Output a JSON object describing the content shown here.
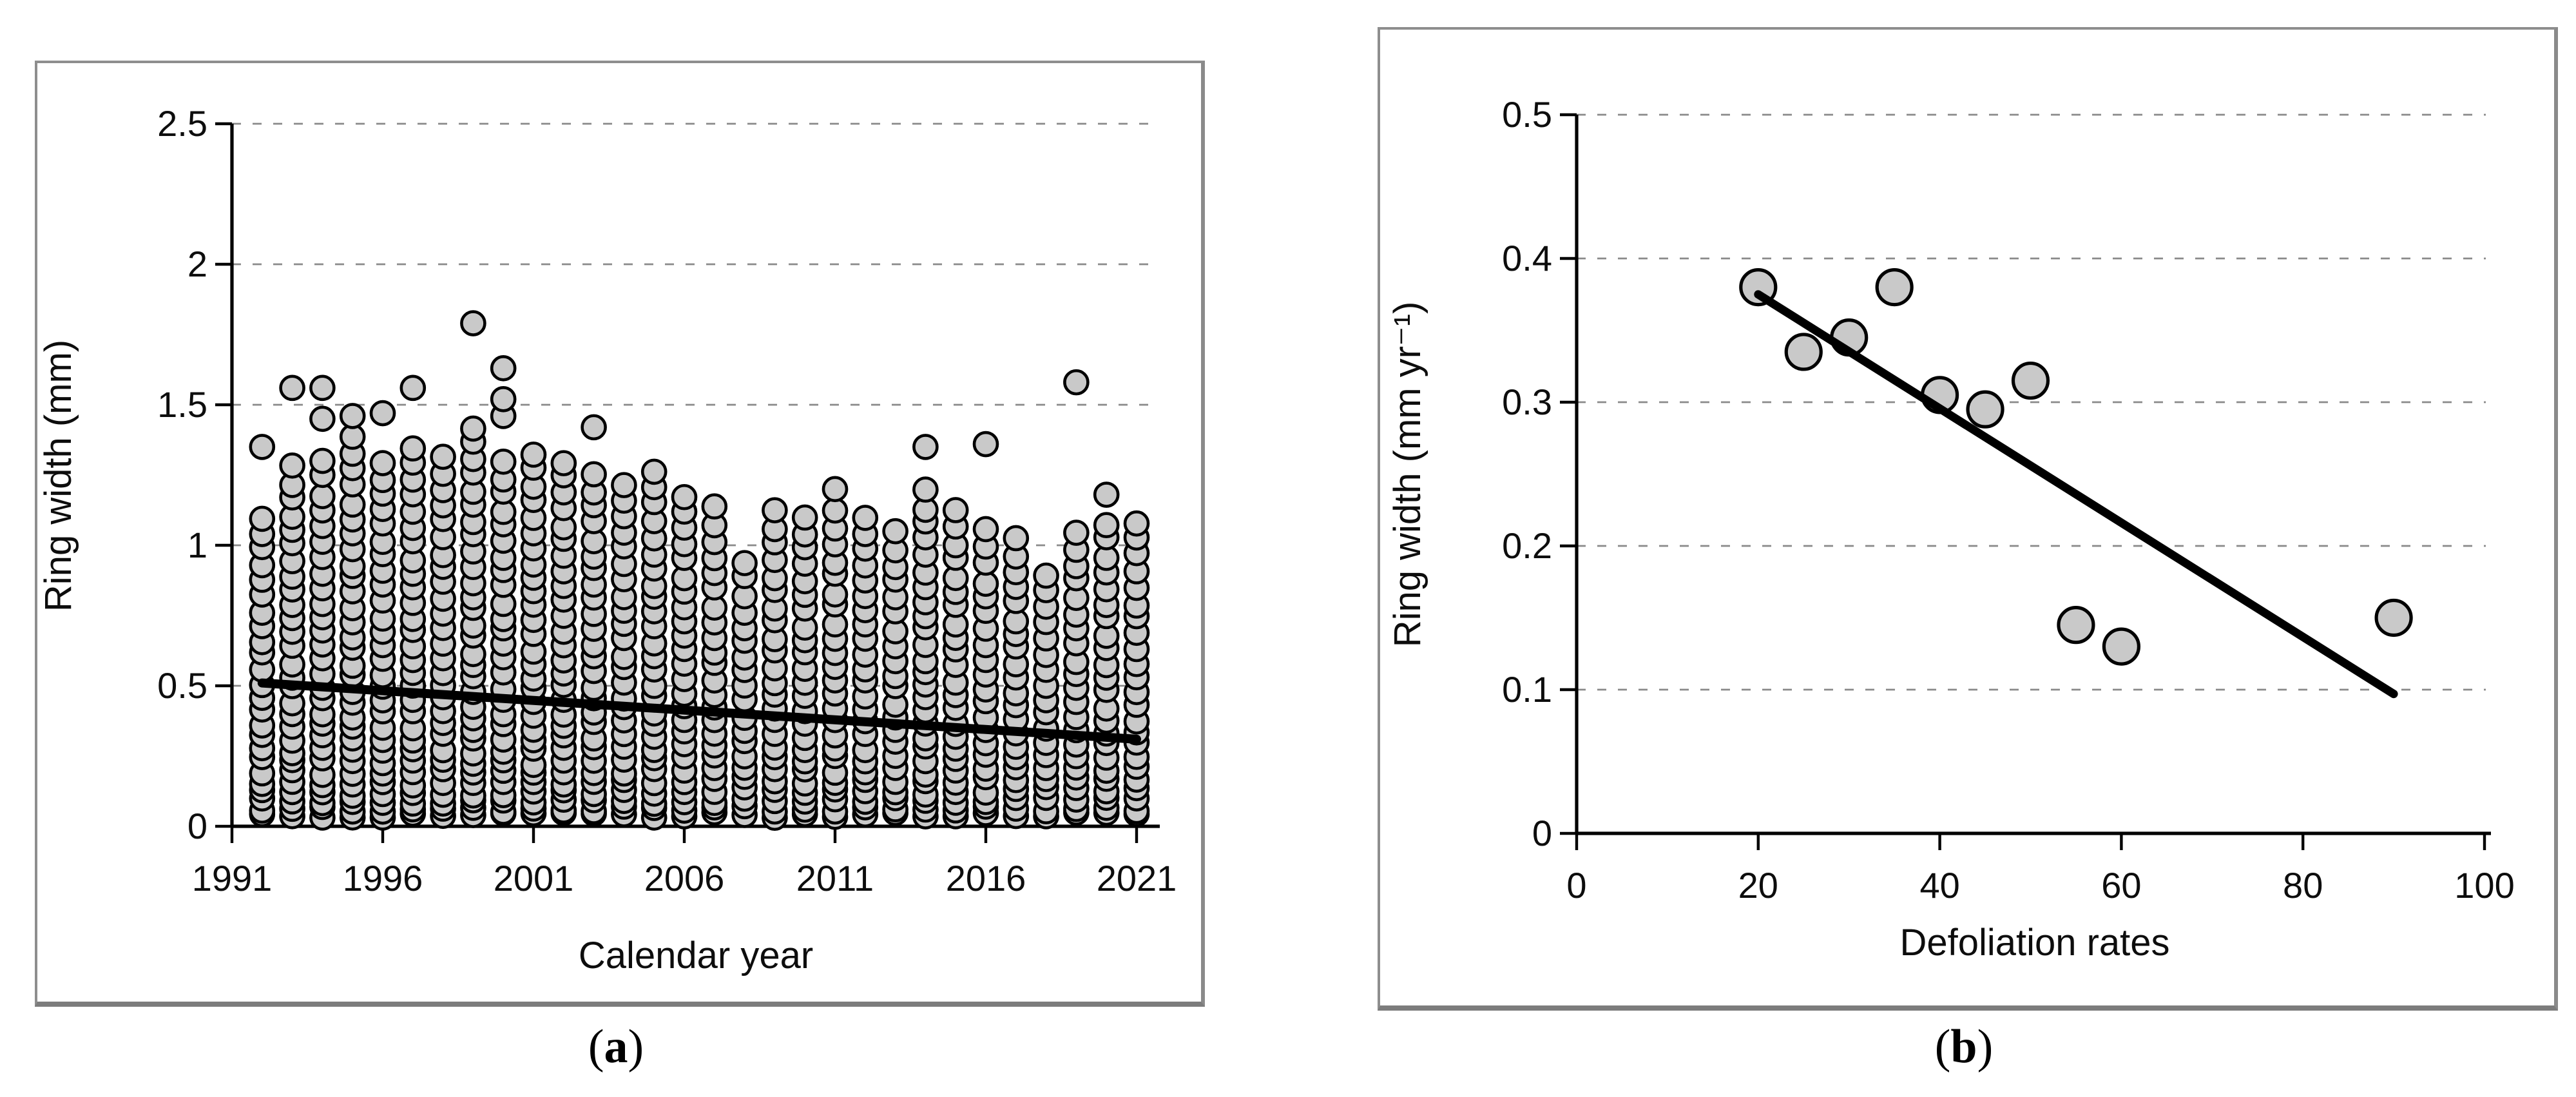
{
  "background": "#ffffff",
  "panel_border_color": "#8e8e8e",
  "captions": {
    "a": {
      "open": "(",
      "letter": "a",
      "close": ")"
    },
    "b": {
      "open": "(",
      "letter": "b",
      "close": ")"
    }
  },
  "chart_data": [
    {
      "type": "scatter",
      "title": "(a)",
      "xlabel": "Calendar year",
      "ylabel": "Ring width (mm)",
      "xlim": [
        1991,
        2022
      ],
      "ylim": [
        0,
        2.5
      ],
      "xticks": [
        1991,
        1996,
        2001,
        2006,
        2011,
        2016,
        2021
      ],
      "yticks": [
        0,
        0.5,
        1,
        1.5,
        2,
        2.5
      ],
      "grid": "dashed horizontal",
      "legend": "none",
      "marker": {
        "shape": "circle",
        "fill": "#c9c9c9",
        "stroke": "#000000"
      },
      "dense_min": 0.04,
      "columns_note": "one vertical swarm of overlapping points per year; dense_max = top of dense column, outliers = isolated high points",
      "columns": [
        {
          "year": 1992,
          "dense_max": 1.1,
          "count": 24,
          "outliers": [
            1.35
          ]
        },
        {
          "year": 1993,
          "dense_max": 1.28,
          "count": 28,
          "outliers": [
            1.56
          ]
        },
        {
          "year": 1994,
          "dense_max": 1.3,
          "count": 28,
          "outliers": [
            1.56,
            1.45
          ]
        },
        {
          "year": 1995,
          "dense_max": 1.38,
          "count": 30,
          "outliers": [
            1.46
          ]
        },
        {
          "year": 1996,
          "dense_max": 1.3,
          "count": 28,
          "outliers": [
            1.47
          ]
        },
        {
          "year": 1997,
          "dense_max": 1.35,
          "count": 29,
          "outliers": [
            1.56
          ]
        },
        {
          "year": 1998,
          "dense_max": 1.32,
          "count": 28,
          "outliers": []
        },
        {
          "year": 1999,
          "dense_max": 1.42,
          "count": 31,
          "outliers": [
            1.79
          ]
        },
        {
          "year": 2000,
          "dense_max": 1.3,
          "count": 28,
          "outliers": [
            1.63,
            1.52,
            1.46
          ]
        },
        {
          "year": 2001,
          "dense_max": 1.33,
          "count": 29,
          "outliers": []
        },
        {
          "year": 2002,
          "dense_max": 1.3,
          "count": 28,
          "outliers": []
        },
        {
          "year": 2003,
          "dense_max": 1.25,
          "count": 27,
          "outliers": [
            1.42
          ]
        },
        {
          "year": 2004,
          "dense_max": 1.22,
          "count": 26,
          "outliers": []
        },
        {
          "year": 2005,
          "dense_max": 1.26,
          "count": 27,
          "outliers": []
        },
        {
          "year": 2006,
          "dense_max": 1.18,
          "count": 25,
          "outliers": []
        },
        {
          "year": 2007,
          "dense_max": 1.13,
          "count": 24,
          "outliers": []
        },
        {
          "year": 2008,
          "dense_max": 0.94,
          "count": 20,
          "outliers": []
        },
        {
          "year": 2009,
          "dense_max": 1.12,
          "count": 24,
          "outliers": []
        },
        {
          "year": 2010,
          "dense_max": 1.1,
          "count": 24,
          "outliers": []
        },
        {
          "year": 2011,
          "dense_max": 1.12,
          "count": 24,
          "outliers": [
            1.2
          ]
        },
        {
          "year": 2012,
          "dense_max": 1.1,
          "count": 24,
          "outliers": []
        },
        {
          "year": 2013,
          "dense_max": 1.05,
          "count": 22,
          "outliers": []
        },
        {
          "year": 2014,
          "dense_max": 1.19,
          "count": 26,
          "outliers": [
            1.35
          ]
        },
        {
          "year": 2015,
          "dense_max": 1.12,
          "count": 24,
          "outliers": []
        },
        {
          "year": 2016,
          "dense_max": 1.05,
          "count": 22,
          "outliers": [
            1.36
          ]
        },
        {
          "year": 2017,
          "dense_max": 1.02,
          "count": 22,
          "outliers": []
        },
        {
          "year": 2018,
          "dense_max": 0.9,
          "count": 19,
          "outliers": []
        },
        {
          "year": 2019,
          "dense_max": 1.05,
          "count": 22,
          "outliers": [
            1.58
          ]
        },
        {
          "year": 2020,
          "dense_max": 1.08,
          "count": 23,
          "outliers": [
            1.18
          ]
        },
        {
          "year": 2021,
          "dense_max": 1.08,
          "count": 23,
          "outliers": []
        }
      ],
      "trend_line": {
        "x1": 1992,
        "y1": 0.51,
        "x2": 2021,
        "y2": 0.31,
        "color": "#000000"
      }
    },
    {
      "type": "scatter",
      "title": "(b)",
      "xlabel": "Defoliation rates",
      "ylabel": "Ring width (mm yr⁻¹)",
      "xlim": [
        0,
        100
      ],
      "ylim": [
        0,
        0.5
      ],
      "xticks": [
        0,
        20,
        40,
        60,
        80,
        100
      ],
      "yticks": [
        0,
        0.1,
        0.2,
        0.3,
        0.4,
        0.5
      ],
      "grid": "dashed horizontal",
      "legend": "none",
      "marker": {
        "shape": "circle",
        "fill": "#c9c9c9",
        "stroke": "#000000"
      },
      "points": [
        [
          20,
          0.38
        ],
        [
          25,
          0.335
        ],
        [
          30,
          0.345
        ],
        [
          35,
          0.38
        ],
        [
          40,
          0.305
        ],
        [
          45,
          0.295
        ],
        [
          50,
          0.315
        ],
        [
          55,
          0.145
        ],
        [
          60,
          0.13
        ],
        [
          90,
          0.15
        ]
      ],
      "trend_line": {
        "x1": 20,
        "y1": 0.375,
        "x2": 90,
        "y2": 0.097,
        "color": "#000000"
      }
    }
  ]
}
